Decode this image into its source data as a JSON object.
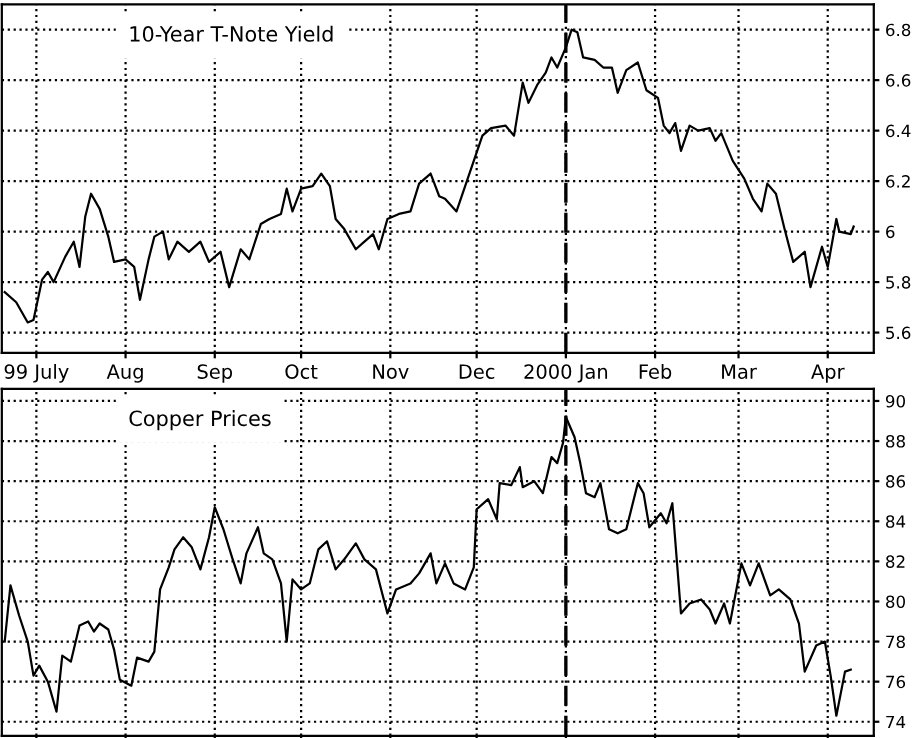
{
  "chart_data": [
    {
      "type": "line",
      "title": "10-Year T-Note Yield",
      "xlim": [
        "1999-06-19",
        "2000-04-17"
      ],
      "ylim": [
        5.52,
        6.9
      ],
      "yticks": [
        5.6,
        5.8,
        6,
        6.2,
        6.4,
        6.6,
        6.8
      ],
      "xticks": [
        {
          "value": "1999-07-01",
          "label": "99 July"
        },
        {
          "value": "1999-08-01",
          "label": "Aug"
        },
        {
          "value": "1999-09-01",
          "label": "Sep"
        },
        {
          "value": "1999-10-01",
          "label": "Oct"
        },
        {
          "value": "1999-11-01",
          "label": "Nov"
        },
        {
          "value": "1999-12-01",
          "label": "Dec"
        },
        {
          "value": "2000-01-01",
          "label": "2000 Jan"
        },
        {
          "value": "2000-02-01",
          "label": "Feb"
        },
        {
          "value": "2000-03-01",
          "label": "Mar"
        },
        {
          "value": "2000-04-01",
          "label": "Apr"
        }
      ],
      "grid": true,
      "line_style": "solid",
      "ref_lines": [
        {
          "axis": "x",
          "value": "2000-01-01",
          "line_style": "dashed",
          "color": "#000000"
        }
      ],
      "series": [
        {
          "color": "#000000",
          "x": [
            "1999-06-20",
            "1999-06-24",
            "1999-06-28",
            "1999-06-30",
            "1999-07-03",
            "1999-07-05",
            "1999-07-07",
            "1999-07-11",
            "1999-07-14",
            "1999-07-16",
            "1999-07-18",
            "1999-07-20",
            "1999-07-23",
            "1999-07-26",
            "1999-07-28",
            "1999-08-01",
            "1999-08-04",
            "1999-08-06",
            "1999-08-09",
            "1999-08-11",
            "1999-08-14",
            "1999-08-16",
            "1999-08-19",
            "1999-08-23",
            "1999-08-27",
            "1999-08-30",
            "1999-09-03",
            "1999-09-06",
            "1999-09-10",
            "1999-09-13",
            "1999-09-17",
            "1999-09-20",
            "1999-09-24",
            "1999-09-26",
            "1999-09-28",
            "1999-10-01",
            "1999-10-05",
            "1999-10-08",
            "1999-10-11",
            "1999-10-13",
            "1999-10-16",
            "1999-10-20",
            "1999-10-23",
            "1999-10-26",
            "1999-10-28",
            "1999-10-31",
            "1999-11-04",
            "1999-11-08",
            "1999-11-11",
            "1999-11-15",
            "1999-11-18",
            "1999-11-20",
            "1999-11-24",
            "1999-11-27",
            "1999-11-30",
            "1999-12-03",
            "1999-12-06",
            "1999-12-11",
            "1999-12-14",
            "1999-12-16",
            "1999-12-17",
            "1999-12-19",
            "1999-12-22",
            "1999-12-25",
            "1999-12-27",
            "1999-12-29",
            "2000-01-01",
            "2000-01-03",
            "2000-01-05",
            "2000-01-07",
            "2000-01-11",
            "2000-01-14",
            "2000-01-17",
            "2000-01-19",
            "2000-01-22",
            "2000-01-26",
            "2000-01-29",
            "2000-02-02",
            "2000-02-04",
            "2000-02-06",
            "2000-02-08",
            "2000-02-10",
            "2000-02-13",
            "2000-02-16",
            "2000-02-20",
            "2000-02-22",
            "2000-02-24",
            "2000-02-28",
            "2000-03-03",
            "2000-03-06",
            "2000-03-09",
            "2000-03-11",
            "2000-03-14",
            "2000-03-17",
            "2000-03-20",
            "2000-03-24",
            "2000-03-26",
            "2000-03-30",
            "2000-04-01",
            "2000-04-04",
            "2000-04-05",
            "2000-04-09",
            "2000-04-10"
          ],
          "values": [
            5.76,
            5.72,
            5.64,
            5.65,
            5.81,
            5.84,
            5.8,
            5.9,
            5.96,
            5.86,
            6.06,
            6.15,
            6.09,
            5.98,
            5.88,
            5.89,
            5.86,
            5.73,
            5.89,
            5.98,
            6.0,
            5.89,
            5.96,
            5.92,
            5.96,
            5.88,
            5.92,
            5.78,
            5.93,
            5.89,
            6.03,
            6.05,
            6.07,
            6.17,
            6.08,
            6.17,
            6.18,
            6.23,
            6.18,
            6.05,
            6.01,
            5.93,
            5.96,
            5.99,
            5.93,
            6.05,
            6.07,
            6.08,
            6.19,
            6.23,
            6.14,
            6.13,
            6.08,
            6.18,
            6.28,
            6.38,
            6.41,
            6.42,
            6.38,
            6.52,
            6.59,
            6.51,
            6.58,
            6.63,
            6.69,
            6.65,
            6.73,
            6.8,
            6.79,
            6.69,
            6.68,
            6.65,
            6.65,
            6.55,
            6.64,
            6.67,
            6.56,
            6.53,
            6.42,
            6.39,
            6.43,
            6.32,
            6.42,
            6.4,
            6.41,
            6.36,
            6.39,
            6.28,
            6.21,
            6.13,
            6.08,
            6.19,
            6.15,
            6.01,
            5.88,
            5.92,
            5.78,
            5.94,
            5.86,
            6.05,
            6.0,
            5.99,
            6.02
          ]
        }
      ]
    },
    {
      "type": "line",
      "title": "Copper Prices",
      "xlim": [
        "1999-06-19",
        "2000-04-17"
      ],
      "ylim": [
        73.3,
        90.6
      ],
      "yticks": [
        74,
        76,
        78,
        80,
        82,
        84,
        86,
        88,
        90
      ],
      "xticks": [
        {
          "value": "1999-07-01",
          "label": null
        },
        {
          "value": "1999-08-01",
          "label": null
        },
        {
          "value": "1999-09-01",
          "label": null
        },
        {
          "value": "1999-10-01",
          "label": null
        },
        {
          "value": "1999-11-01",
          "label": null
        },
        {
          "value": "1999-12-01",
          "label": null
        },
        {
          "value": "2000-01-01",
          "label": null
        },
        {
          "value": "2000-02-01",
          "label": null
        },
        {
          "value": "2000-03-01",
          "label": null
        },
        {
          "value": "2000-04-01",
          "label": null
        }
      ],
      "tick_labels": "y",
      "grid": true,
      "line_style": "solid",
      "ref_lines": [
        {
          "axis": "x",
          "value": "2000-01-01",
          "line_style": "dashed",
          "color": "#000000"
        }
      ],
      "series": [
        {
          "color": "#000000",
          "x": [
            "1999-06-20",
            "1999-06-22",
            "1999-06-25",
            "1999-06-28",
            "1999-06-30",
            "1999-07-02",
            "1999-07-05",
            "1999-07-08",
            "1999-07-10",
            "1999-07-13",
            "1999-07-16",
            "1999-07-19",
            "1999-07-21",
            "1999-07-23",
            "1999-07-26",
            "1999-07-28",
            "1999-07-30",
            "1999-08-03",
            "1999-08-05",
            "1999-08-09",
            "1999-08-11",
            "1999-08-13",
            "1999-08-16",
            "1999-08-18",
            "1999-08-21",
            "1999-08-24",
            "1999-08-27",
            "1999-08-30",
            "1999-09-01",
            "1999-09-04",
            "1999-09-07",
            "1999-09-10",
            "1999-09-12",
            "1999-09-16",
            "1999-09-18",
            "1999-09-21",
            "1999-09-24",
            "1999-09-26",
            "1999-09-28",
            "1999-10-01",
            "1999-10-04",
            "1999-10-07",
            "1999-10-10",
            "1999-10-13",
            "1999-10-16",
            "1999-10-20",
            "1999-10-23",
            "1999-10-27",
            "1999-10-31",
            "1999-11-03",
            "1999-11-08",
            "1999-11-11",
            "1999-11-15",
            "1999-11-17",
            "1999-11-20",
            "1999-11-23",
            "1999-11-27",
            "1999-11-30",
            "1999-12-01",
            "1999-12-05",
            "1999-12-08",
            "1999-12-09",
            "1999-12-13",
            "1999-12-16",
            "1999-12-17",
            "1999-12-21",
            "1999-12-24",
            "1999-12-27",
            "1999-12-29",
            "1999-12-31",
            "2000-01-01",
            "2000-01-04",
            "2000-01-06",
            "2000-01-08",
            "2000-01-11",
            "2000-01-13",
            "2000-01-16",
            "2000-01-19",
            "2000-01-22",
            "2000-01-26",
            "2000-01-28",
            "2000-01-30",
            "2000-02-03",
            "2000-02-05",
            "2000-02-07",
            "2000-02-10",
            "2000-02-13",
            "2000-02-17",
            "2000-02-20",
            "2000-02-22",
            "2000-02-25",
            "2000-02-27",
            "2000-03-02",
            "2000-03-05",
            "2000-03-08",
            "2000-03-12",
            "2000-03-15",
            "2000-03-19",
            "2000-03-22",
            "2000-03-24",
            "2000-03-28",
            "2000-03-31",
            "2000-04-02",
            "2000-04-04",
            "2000-04-07",
            "2000-04-09"
          ],
          "values": [
            78.0,
            80.8,
            79.3,
            78.0,
            76.3,
            76.8,
            76.0,
            74.5,
            77.3,
            77.0,
            78.8,
            79.0,
            78.5,
            78.9,
            78.6,
            77.6,
            76.1,
            75.8,
            77.2,
            77.0,
            77.5,
            80.6,
            81.7,
            82.6,
            83.2,
            82.7,
            81.6,
            83.2,
            84.7,
            83.6,
            82.2,
            80.9,
            82.4,
            83.7,
            82.4,
            82.1,
            80.9,
            78.0,
            81.1,
            80.6,
            80.9,
            82.6,
            83.0,
            81.6,
            82.1,
            82.9,
            82.1,
            81.6,
            79.4,
            80.6,
            80.9,
            81.4,
            82.4,
            80.9,
            81.9,
            80.9,
            80.6,
            81.7,
            84.6,
            85.1,
            84.1,
            85.9,
            85.8,
            86.7,
            85.7,
            86.0,
            85.4,
            87.2,
            86.9,
            87.9,
            89.2,
            88.2,
            86.9,
            85.4,
            85.2,
            85.9,
            83.6,
            83.4,
            83.6,
            85.9,
            85.4,
            83.7,
            84.4,
            83.9,
            84.9,
            79.4,
            79.9,
            80.1,
            79.6,
            78.9,
            79.9,
            78.9,
            81.9,
            80.8,
            81.9,
            80.3,
            80.6,
            80.1,
            78.9,
            76.5,
            77.8,
            78.0,
            76.3,
            74.3,
            76.5,
            76.6
          ]
        }
      ]
    }
  ]
}
